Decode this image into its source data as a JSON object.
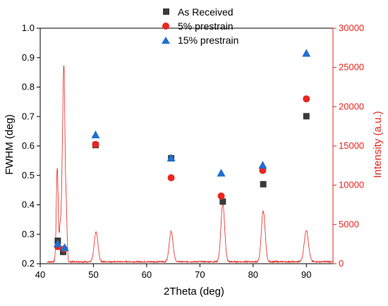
{
  "colors": {
    "as_received": "#3a3a3a",
    "prestrain_5": "#e8261f",
    "prestrain_15": "#1f6fd1",
    "intensity_line": "#e8261f",
    "right_axis": "#e8261f"
  },
  "chart_data": {
    "type": "scatter",
    "xlabel": "2Theta (deg)",
    "ylabel": "FWHM (deg)",
    "y2label": "Intensity (a.u.)",
    "xlim": [
      40,
      95
    ],
    "ylim": [
      0.2,
      1.0
    ],
    "y2lim": [
      0,
      30000
    ],
    "x_ticks": [
      40,
      50,
      60,
      70,
      80,
      90
    ],
    "y_ticks": [
      0.2,
      0.3,
      0.4,
      0.5,
      0.6,
      0.7,
      0.8,
      0.9,
      1.0
    ],
    "y2_ticks": [
      0,
      5000,
      10000,
      15000,
      20000,
      25000,
      30000
    ],
    "legend_position": "top-center",
    "series": [
      {
        "name": "As Received",
        "marker": "square",
        "axis": "left",
        "x": [
          43.3,
          44.3,
          50.4,
          64.6,
          74.3,
          81.9,
          90.0
        ],
        "y": [
          0.278,
          0.24,
          0.603,
          0.558,
          0.411,
          0.47,
          0.701
        ]
      },
      {
        "name": "5% prestrain",
        "marker": "circle",
        "axis": "left",
        "x": [
          43.3,
          44.5,
          50.4,
          64.6,
          74.0,
          81.8,
          90.0
        ],
        "y": [
          0.258,
          0.25,
          0.605,
          0.492,
          0.43,
          0.517,
          0.76
        ]
      },
      {
        "name": "15% prestrain",
        "marker": "triangle",
        "axis": "left",
        "x": [
          43.3,
          44.6,
          50.4,
          64.6,
          74.0,
          81.8,
          90.0
        ],
        "y": [
          0.268,
          0.255,
          0.638,
          0.56,
          0.508,
          0.535,
          0.915
        ]
      }
    ],
    "intensity_profile": {
      "axis": "right",
      "baseline": 250,
      "noise": 180,
      "peaks": [
        {
          "center": 43.2,
          "height": 12000,
          "width": 0.18
        },
        {
          "center": 43.75,
          "height": 4500,
          "width": 0.15
        },
        {
          "center": 44.1,
          "height": 7000,
          "width": 0.15
        },
        {
          "center": 44.45,
          "height": 24500,
          "width": 0.2
        },
        {
          "center": 44.9,
          "height": 6000,
          "width": 0.15
        },
        {
          "center": 50.5,
          "height": 3800,
          "width": 0.35
        },
        {
          "center": 64.6,
          "height": 3900,
          "width": 0.35
        },
        {
          "center": 74.3,
          "height": 7400,
          "width": 0.35
        },
        {
          "center": 81.9,
          "height": 6500,
          "width": 0.35
        },
        {
          "center": 90.0,
          "height": 4000,
          "width": 0.4
        }
      ]
    }
  }
}
